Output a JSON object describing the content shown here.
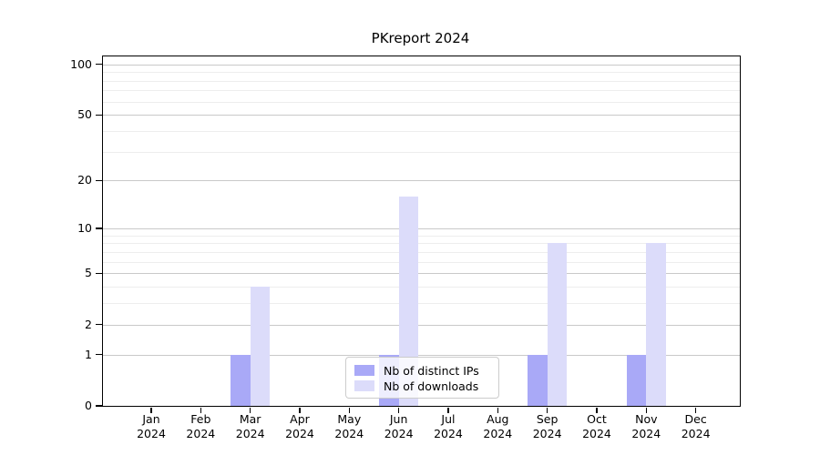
{
  "title": "PKreport 2024",
  "chart_data": {
    "type": "bar",
    "title": "PKreport 2024",
    "categories": [
      "Jan 2024",
      "Feb 2024",
      "Mar 2024",
      "Apr 2024",
      "May 2024",
      "Jun 2024",
      "Jul 2024",
      "Aug 2024",
      "Sep 2024",
      "Oct 2024",
      "Nov 2024",
      "Dec 2024"
    ],
    "series": [
      {
        "name": "Nb of distinct IPs",
        "color": "#a9a9f7",
        "values": [
          0,
          0,
          1,
          0,
          0,
          1,
          0,
          0,
          1,
          0,
          1,
          0
        ]
      },
      {
        "name": "Nb of downloads",
        "color": "#dcdcfa",
        "values": [
          0,
          0,
          4,
          0,
          0,
          16,
          0,
          0,
          8,
          0,
          8,
          0
        ]
      }
    ],
    "xlabel": "",
    "ylabel": "",
    "yscale": "log1p",
    "ylim": [
      0,
      112
    ],
    "y_tick_labels": [
      "0",
      "1",
      "2",
      "5",
      "10",
      "20",
      "50",
      "100"
    ],
    "y_major_ticks": [
      0,
      1,
      2,
      5,
      10,
      20,
      50,
      100
    ],
    "y_minor_gridlines": [
      3,
      4,
      6,
      7,
      8,
      9,
      30,
      40,
      60,
      70,
      80,
      90
    ],
    "grid": true,
    "legend_position": "lower center"
  },
  "colors": {
    "background": "#ffffff",
    "axis": "#000000",
    "major_grid": "#c9c9c9",
    "minor_grid": "#ededed",
    "bar_distinct_ips": "#a9a9f7",
    "bar_downloads": "#dcdcfa"
  }
}
